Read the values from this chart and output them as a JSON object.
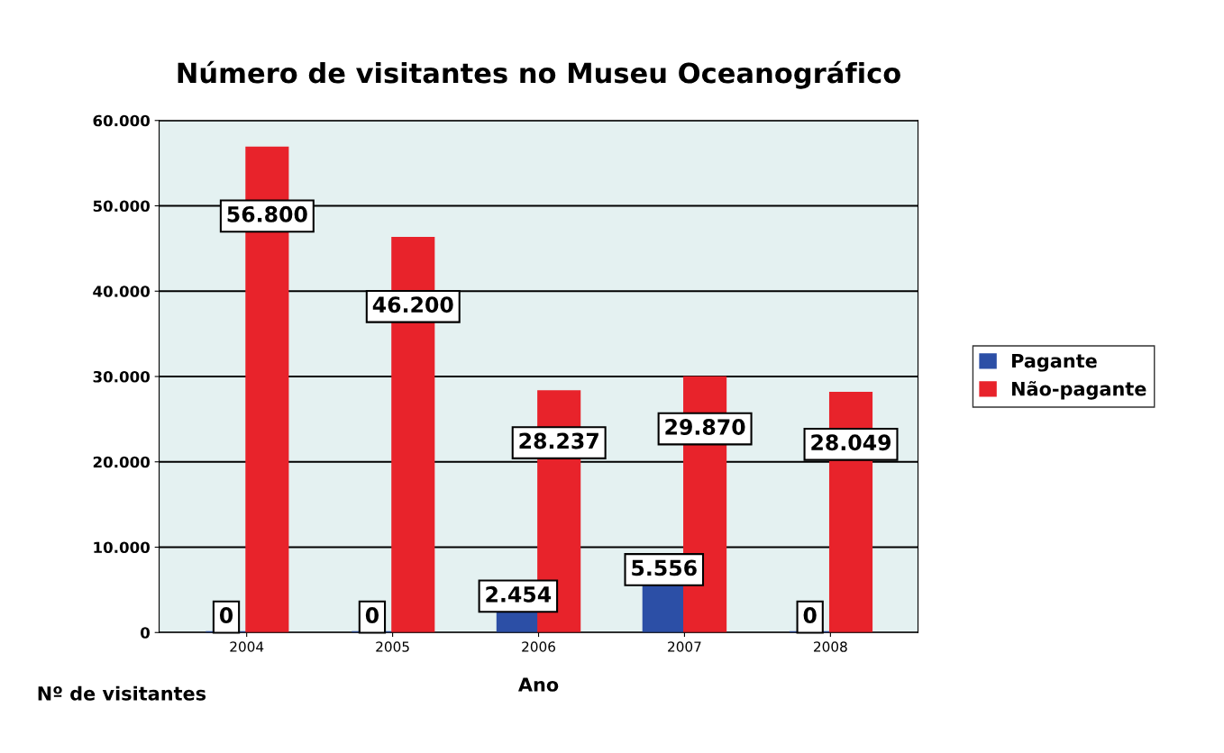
{
  "chart_data": {
    "type": "bar",
    "title": "Número de visitantes no Museu Oceanográfico",
    "xlabel": "Ano",
    "ylabel": "Nº de visitantes",
    "categories": [
      "2004",
      "2005",
      "2006",
      "2007",
      "2008"
    ],
    "series": [
      {
        "name": "Pagante",
        "color": "#2c4fa6",
        "values": [
          0,
          0,
          2454,
          5556,
          0
        ],
        "value_labels": [
          "0",
          "0",
          "2.454",
          "5.556",
          "0"
        ]
      },
      {
        "name": "Não-pagante",
        "color": "#e8232b",
        "values": [
          56800,
          46200,
          28237,
          29870,
          28049
        ],
        "value_labels": [
          "56.800",
          "46.200",
          "28.237",
          "29.870",
          "28.049"
        ]
      }
    ],
    "ylim": [
      0,
      60000
    ],
    "yticks": [
      {
        "value": 0,
        "label": "0"
      },
      {
        "value": 10000,
        "label": "10.000"
      },
      {
        "value": 20000,
        "label": "20.000"
      },
      {
        "value": 30000,
        "label": "30.000"
      },
      {
        "value": 40000,
        "label": "40.000"
      },
      {
        "value": 50000,
        "label": "50.000"
      },
      {
        "value": 60000,
        "label": "60.000"
      }
    ],
    "grid": "y",
    "legend": "right"
  }
}
